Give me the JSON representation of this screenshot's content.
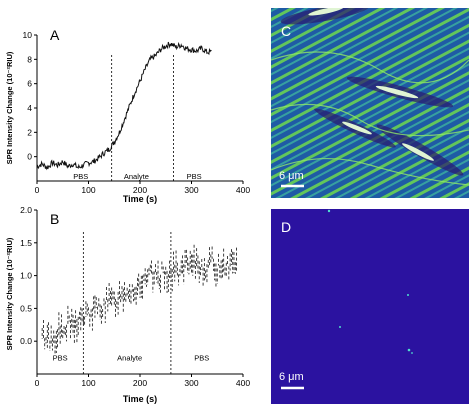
{
  "chart_data": [
    {
      "panel": "A",
      "type": "line",
      "xlabel": "Time (s)",
      "ylabel": "SPR Intensity Change (10⁻²RIU)",
      "xlim": [
        0,
        400
      ],
      "ylim": [
        -2,
        10
      ],
      "xticks": [
        0,
        100,
        200,
        300,
        400
      ],
      "yticks": [
        0,
        2,
        4,
        6,
        8,
        10
      ],
      "series_color": "#111111",
      "series": [
        {
          "x": [
            0,
            10,
            20,
            30,
            40,
            50,
            60,
            70,
            80,
            90,
            100,
            110,
            120,
            130,
            140,
            150,
            160,
            170,
            180,
            190,
            200,
            210,
            220,
            230,
            240,
            250,
            260,
            270,
            280,
            290,
            300,
            310,
            320,
            330,
            340
          ],
          "values": [
            -0.8,
            -0.6,
            -0.9,
            -0.5,
            -0.7,
            -0.4,
            -0.8,
            -0.6,
            -0.9,
            -0.7,
            -0.5,
            -0.4,
            -0.1,
            0.3,
            0.6,
            1.2,
            2.0,
            3.1,
            4.2,
            5.3,
            6.2,
            7.2,
            8.0,
            8.3,
            8.8,
            9.1,
            9.3,
            9.0,
            9.2,
            8.9,
            8.8,
            8.7,
            8.9,
            8.6,
            8.6
          ]
        }
      ],
      "dividers_x": [
        145,
        265
      ],
      "phase_labels": [
        {
          "text": "PBS",
          "x": 85,
          "y": -1.6
        },
        {
          "text": "Analyte",
          "x": 193,
          "y": -1.6
        },
        {
          "text": "PBS",
          "x": 305,
          "y": -1.6
        }
      ]
    },
    {
      "panel": "B",
      "type": "line",
      "xlabel": "Time (s)",
      "ylabel": "SPR Intensity Change (10⁻²RIU)",
      "xlim": [
        0,
        400
      ],
      "ylim": [
        -0.5,
        2.0
      ],
      "xticks": [
        0,
        100,
        200,
        300,
        400
      ],
      "yticks": [
        0.0,
        0.5,
        1.0,
        1.5,
        2.0
      ],
      "series_color": "#111111",
      "series": [
        {
          "x": [
            10,
            20,
            30,
            40,
            50,
            60,
            70,
            80,
            90,
            100,
            110,
            120,
            130,
            140,
            150,
            160,
            170,
            180,
            190,
            200,
            210,
            220,
            230,
            240,
            250,
            260,
            270,
            280,
            290,
            300,
            310,
            320,
            330,
            340,
            350,
            360,
            370,
            380,
            390
          ],
          "values": [
            0.05,
            0.1,
            0.0,
            0.15,
            0.1,
            0.25,
            0.2,
            0.3,
            0.35,
            0.4,
            0.45,
            0.5,
            0.55,
            0.6,
            0.6,
            0.7,
            0.75,
            0.8,
            0.75,
            0.9,
            0.85,
            1.0,
            0.95,
            1.0,
            1.05,
            1.0,
            1.1,
            1.05,
            1.15,
            1.1,
            1.2,
            1.1,
            1.15,
            1.2,
            1.1,
            1.2,
            1.15,
            1.2,
            1.2
          ]
        }
      ],
      "dividers_x": [
        90,
        260
      ],
      "phase_labels": [
        {
          "text": "PBS",
          "x": 45,
          "y": -0.25
        },
        {
          "text": "Analyte",
          "x": 180,
          "y": -0.25
        },
        {
          "text": "PBS",
          "x": 320,
          "y": -0.25
        }
      ]
    }
  ],
  "images": [
    {
      "panel": "C",
      "scalebar_label": "6 μm",
      "background": "#1f5fa8",
      "fringe_color": "#7fe05a",
      "edge_color": "#2a1a6e",
      "hotspot_color": "#f0ffe0"
    },
    {
      "panel": "D",
      "scalebar_label": "6 μm",
      "background": "#2b12a0",
      "spot_color": "#4fe0d0"
    }
  ]
}
